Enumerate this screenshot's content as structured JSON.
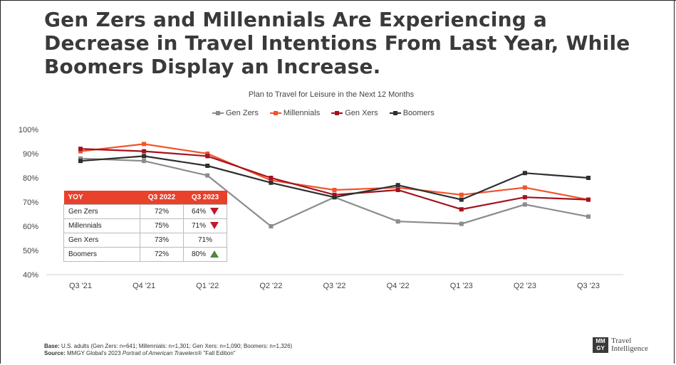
{
  "title": "Gen Zers and Millennials Are Experiencing a Decrease in Travel Intentions From Last Year, While Boomers Display an Increase.",
  "chart_data": {
    "type": "line",
    "title": "Plan to Travel for Leisure in the Next 12 Months",
    "categories": [
      "Q3 '21",
      "Q4 '21",
      "Q1 '22",
      "Q2 '22",
      "Q3 '22",
      "Q4 '22",
      "Q1 '23",
      "Q2 '23",
      "Q3 '23"
    ],
    "ylim": [
      40,
      100
    ],
    "yticks": [
      "40%",
      "50%",
      "60%",
      "70%",
      "80%",
      "90%",
      "100%"
    ],
    "legend_position": "top",
    "series": [
      {
        "name": "Gen Zers",
        "color": "#8c8c8c",
        "values": [
          88,
          87,
          81,
          60,
          72,
          62,
          61,
          69,
          64
        ]
      },
      {
        "name": "Millennials",
        "color": "#f2542d",
        "values": [
          91,
          94,
          90,
          79,
          75,
          76,
          73,
          76,
          71
        ]
      },
      {
        "name": "Gen Xers",
        "color": "#a3121f",
        "values": [
          92,
          91,
          89,
          80,
          73,
          75,
          67,
          72,
          71
        ]
      },
      {
        "name": "Boomers",
        "color": "#2f2f2f",
        "values": [
          87,
          89,
          85,
          78,
          72,
          77,
          71,
          82,
          80
        ]
      }
    ]
  },
  "yoy_table": {
    "headers": [
      "YOY",
      "Q3 2022",
      "Q3 2023"
    ],
    "rows": [
      {
        "label": "Gen Zers",
        "q3_2022": "72%",
        "q3_2023": "64%",
        "trend": "down"
      },
      {
        "label": "Millennials",
        "q3_2022": "75%",
        "q3_2023": "71%",
        "trend": "down"
      },
      {
        "label": "Gen Xers",
        "q3_2022": "73%",
        "q3_2023": "71%",
        "trend": "none"
      },
      {
        "label": "Boomers",
        "q3_2022": "72%",
        "q3_2023": "80%",
        "trend": "up"
      }
    ]
  },
  "footer": {
    "base_label": "Base:",
    "base_text": " U.S. adults (Gen Zers: n=641; Millennials: n=1,301; Gen Xers: n=1,090; Boomers: n=1,326)",
    "source_label": "Source:",
    "source_text": " MMGY Global's 2023 ",
    "source_italic": "Portrait of American Travelers",
    "source_tail": "® \"Fall Edition\""
  },
  "logo": {
    "mark_top": "MM",
    "mark_bottom": "GY",
    "line1": "Travel",
    "line2": "Intelligence"
  }
}
